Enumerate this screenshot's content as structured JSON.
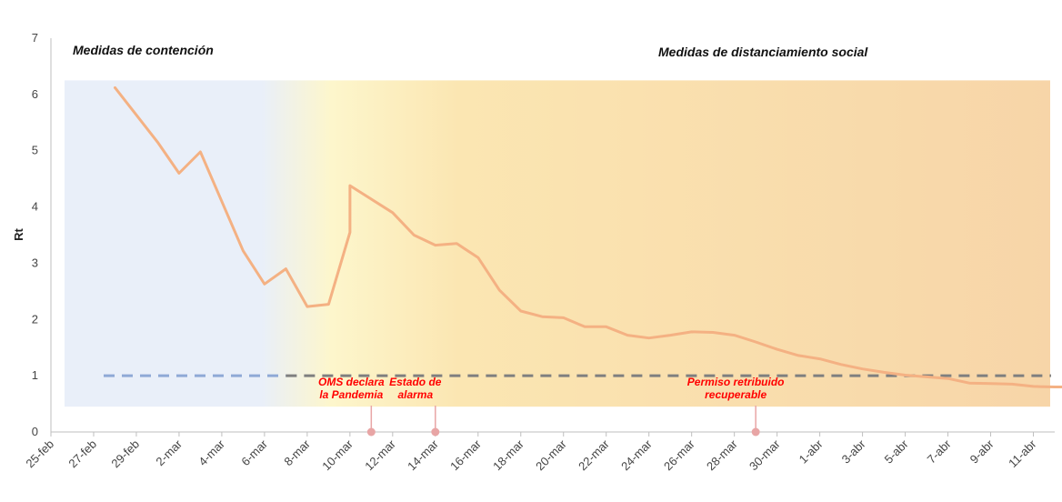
{
  "chart_data": {
    "type": "line",
    "ylabel": "Rt",
    "ylim": [
      0,
      7
    ],
    "yticks": [
      0,
      1,
      2,
      3,
      4,
      5,
      6,
      7
    ],
    "x_range": [
      "2020-02-25",
      "2020-04-12"
    ],
    "x_tick_labels": [
      "25-feb",
      "27-feb",
      "29-feb",
      "2-mar",
      "4-mar",
      "6-mar",
      "8-mar",
      "10-mar",
      "12-mar",
      "14-mar",
      "16-mar",
      "18-mar",
      "20-mar",
      "22-mar",
      "24-mar",
      "26-mar",
      "28-mar",
      "30-mar",
      "1-abr",
      "3-abr",
      "5-abr",
      "7-abr",
      "9-abr",
      "11-abr"
    ],
    "phases": [
      {
        "label": "Medidas de contención",
        "start": "2020-02-25",
        "end": "2020-03-07"
      },
      {
        "label": "Medidas de distanciamiento social",
        "start": "2020-03-07",
        "end": "2020-04-12"
      }
    ],
    "series": [
      {
        "color": "#f4b183",
        "points": [
          [
            "2020-02-28",
            6.12
          ],
          [
            "2020-03-01",
            5.15
          ],
          [
            "2020-03-02",
            4.6
          ],
          [
            "2020-03-03",
            4.98
          ],
          [
            "2020-03-05",
            3.22
          ],
          [
            "2020-03-06",
            2.63
          ],
          [
            "2020-03-07",
            2.9
          ],
          [
            "2020-03-08",
            2.23
          ],
          [
            "2020-03-09",
            2.27
          ],
          [
            "2020-03-10",
            3.55
          ],
          [
            "2020-03-10",
            4.38
          ],
          [
            "2020-03-12",
            3.9
          ],
          [
            "2020-03-13",
            3.5
          ],
          [
            "2020-03-14",
            3.32
          ],
          [
            "2020-03-15",
            3.35
          ],
          [
            "2020-03-16",
            3.1
          ],
          [
            "2020-03-17",
            2.52
          ],
          [
            "2020-03-18",
            2.15
          ],
          [
            "2020-03-19",
            2.05
          ],
          [
            "2020-03-20",
            2.03
          ],
          [
            "2020-03-21",
            1.87
          ],
          [
            "2020-03-22",
            1.87
          ],
          [
            "2020-03-23",
            1.72
          ],
          [
            "2020-03-24",
            1.67
          ],
          [
            "2020-03-25",
            1.72
          ],
          [
            "2020-03-26",
            1.78
          ],
          [
            "2020-03-27",
            1.77
          ],
          [
            "2020-03-28",
            1.72
          ],
          [
            "2020-03-29",
            1.6
          ],
          [
            "2020-03-30",
            1.47
          ],
          [
            "2020-03-31",
            1.36
          ],
          [
            "2020-04-01",
            1.3
          ],
          [
            "2020-04-02",
            1.2
          ],
          [
            "2020-04-03",
            1.12
          ],
          [
            "2020-04-04",
            1.06
          ],
          [
            "2020-04-05",
            1.01
          ],
          [
            "2020-04-06",
            0.98
          ],
          [
            "2020-04-07",
            0.95
          ],
          [
            "2020-04-08",
            0.87
          ],
          [
            "2020-04-09",
            0.86
          ],
          [
            "2020-04-10",
            0.85
          ],
          [
            "2020-04-11",
            0.81
          ],
          [
            "2020-04-12",
            0.8
          ],
          [
            "2020-04-13",
            0.8
          ]
        ]
      }
    ],
    "reference_line": {
      "y": 1,
      "color": "#7f7f7f",
      "style": "dashed"
    },
    "annotations": [
      {
        "lines": [
          "OMS declara",
          "la Pandemia"
        ],
        "date": "2020-03-11",
        "color": "#ff0000"
      },
      {
        "lines": [
          "Estado de",
          "alarma"
        ],
        "date": "2020-03-14",
        "color": "#ff0000"
      },
      {
        "lines": [
          "Permiso retribuido",
          "recuperable"
        ],
        "date": "2020-03-29",
        "color": "#ff0000"
      }
    ],
    "colors": {
      "line": "#f4b183",
      "containment_band": "#e9eff9",
      "social_band_start": "#fdf6cc",
      "social_band_end": "#f7d5a8",
      "reference": "#7f7f7f",
      "reference_left": "#8fa9d6",
      "marker": "#e8a5a5",
      "axis": "#bfbfbf"
    }
  }
}
